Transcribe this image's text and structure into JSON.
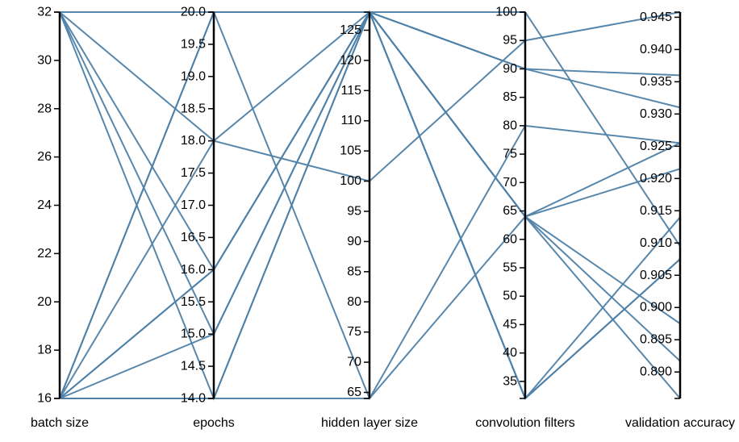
{
  "chart_data": {
    "type": "parallel_coordinates",
    "title": "",
    "line_color": "#4f81a8",
    "axes": [
      {
        "label": "batch size",
        "range": [
          16,
          32
        ],
        "ticks": [
          "16",
          "18",
          "20",
          "22",
          "24",
          "26",
          "28",
          "30",
          "32"
        ]
      },
      {
        "label": "epochs",
        "range": [
          14,
          20
        ],
        "ticks": [
          "14.0",
          "14.5",
          "15.0",
          "15.5",
          "16.0",
          "16.5",
          "17.0",
          "17.5",
          "18.0",
          "18.5",
          "19.0",
          "19.5",
          "20.0"
        ]
      },
      {
        "label": "hidden layer size",
        "range": [
          64,
          128
        ],
        "ticks": [
          "65",
          "70",
          "75",
          "80",
          "85",
          "90",
          "95",
          "100",
          "105",
          "110",
          "115",
          "120",
          "125"
        ]
      },
      {
        "label": "convolution filters",
        "range": [
          32,
          100
        ],
        "ticks": [
          "35",
          "40",
          "45",
          "50",
          "55",
          "60",
          "65",
          "70",
          "75",
          "80",
          "85",
          "90",
          "95",
          "100"
        ]
      },
      {
        "label": "validation accuracy",
        "range": [
          0.8859,
          0.9458
        ],
        "ticks": [
          "0.890",
          "0.895",
          "0.900",
          "0.905",
          "0.910",
          "0.915",
          "0.920",
          "0.925",
          "0.930",
          "0.935",
          "0.940",
          "0.945"
        ]
      }
    ],
    "lines": [
      [
        16,
        20,
        128,
        32,
        0.914
      ],
      [
        16,
        20,
        128,
        100,
        0.9095
      ],
      [
        16,
        18,
        100,
        95,
        0.9458
      ],
      [
        16,
        16,
        128,
        64,
        0.9255
      ],
      [
        16,
        16,
        128,
        64,
        0.8859
      ],
      [
        16,
        15,
        128,
        64,
        0.9215
      ],
      [
        16,
        14,
        128,
        64,
        0.8975
      ],
      [
        16,
        14,
        64,
        64,
        0.8917
      ],
      [
        32,
        20,
        64,
        80,
        0.9255
      ],
      [
        32,
        18,
        128,
        90,
        0.931
      ],
      [
        32,
        16,
        128,
        90,
        0.936
      ],
      [
        32,
        15,
        128,
        32,
        0.9075
      ],
      [
        32,
        14,
        128,
        32,
        0.9075
      ]
    ]
  }
}
